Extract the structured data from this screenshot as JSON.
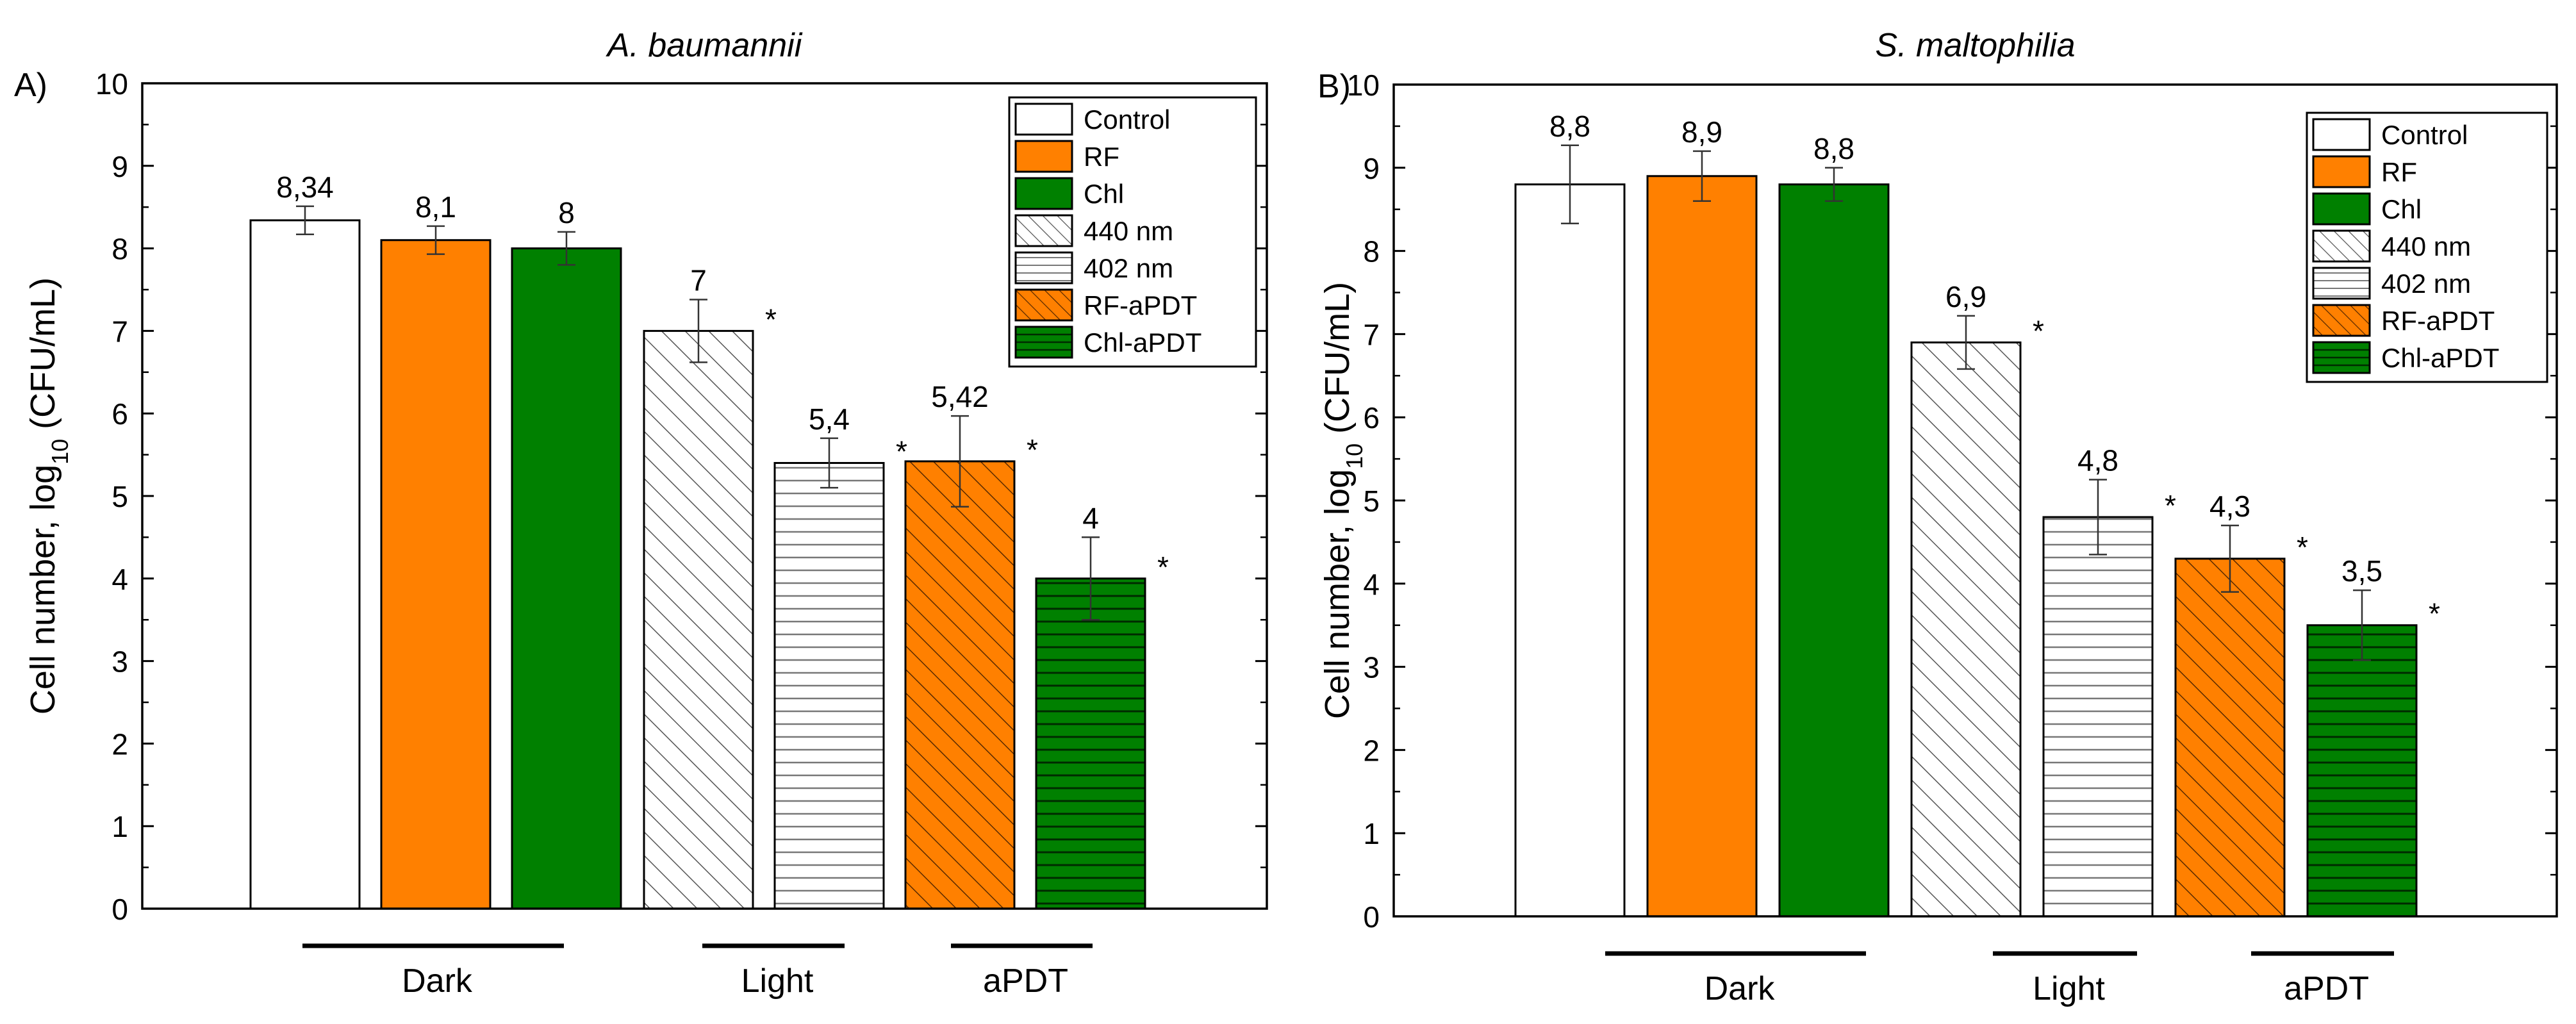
{
  "colors": {
    "control": "#ffffff",
    "rf": "#ff8000",
    "chl": "#008000",
    "axis": "#000000",
    "hatch": "#555555"
  },
  "legend_entries": [
    {
      "label": "Control",
      "pattern": "control"
    },
    {
      "label": "RF",
      "pattern": "rf"
    },
    {
      "label": "Chl",
      "pattern": "chl"
    },
    {
      "label": "440 nm",
      "pattern": "diag-white"
    },
    {
      "label": "402 nm",
      "pattern": "horiz-white"
    },
    {
      "label": "RF-aPDT",
      "pattern": "diag-orange"
    },
    {
      "label": "Chl-aPDT",
      "pattern": "horiz-green"
    }
  ],
  "chart_data": [
    {
      "type": "bar",
      "panel_label": "A)",
      "title": "A. baumannii",
      "ylabel_prefix": "Cell number, log",
      "ylabel_sub": "10",
      "ylabel_suffix": " (CFU/mL)",
      "ylim": [
        0,
        10
      ],
      "yticks": [
        "0",
        "1",
        "2",
        "3",
        "4",
        "5",
        "6",
        "7",
        "8",
        "9",
        "10"
      ],
      "legend": "top-right",
      "categories": [
        "Control",
        "RF",
        "Chl",
        "440 nm",
        "402 nm",
        "RF-aPDT",
        "Chl-aPDT"
      ],
      "values": [
        8.34,
        8.1,
        8.0,
        7.0,
        5.4,
        5.42,
        4.0
      ],
      "errors": [
        0.17,
        0.17,
        0.2,
        0.38,
        0.3,
        0.55,
        0.5
      ],
      "data_labels": [
        "8,34",
        "8,1",
        "8",
        "7",
        "5,4",
        "5,42",
        "4"
      ],
      "significant": [
        false,
        false,
        false,
        true,
        true,
        true,
        true
      ],
      "significance_marker": "*",
      "groups": [
        {
          "label": "Dark",
          "from": 0,
          "to": 2
        },
        {
          "label": "Light",
          "from": 3,
          "to": 4
        },
        {
          "label": "aPDT",
          "from": 5,
          "to": 6
        }
      ]
    },
    {
      "type": "bar",
      "panel_label": "B)",
      "title": "S. maltophilia",
      "ylabel_prefix": "Cell number, log",
      "ylabel_sub": "10",
      "ylabel_suffix": " (CFU/mL)",
      "ylim": [
        0,
        10
      ],
      "yticks": [
        "0",
        "1",
        "2",
        "3",
        "4",
        "5",
        "6",
        "7",
        "8",
        "9",
        "10"
      ],
      "legend": "top-right",
      "categories": [
        "Control",
        "RF",
        "Chl",
        "440 nm",
        "402 nm",
        "RF-aPDT",
        "Chl-aPDT"
      ],
      "values": [
        8.8,
        8.9,
        8.8,
        6.9,
        4.8,
        4.3,
        3.5
      ],
      "errors": [
        0.47,
        0.3,
        0.2,
        0.32,
        0.45,
        0.4,
        0.42
      ],
      "data_labels": [
        "8,8",
        "8,9",
        "8,8",
        "6,9",
        "4,8",
        "4,3",
        "3,5"
      ],
      "significant": [
        false,
        false,
        false,
        true,
        true,
        true,
        true
      ],
      "significance_marker": "*",
      "groups": [
        {
          "label": "Dark",
          "from": 0,
          "to": 2
        },
        {
          "label": "Light",
          "from": 3,
          "to": 4
        },
        {
          "label": "aPDT",
          "from": 5,
          "to": 6
        }
      ]
    }
  ]
}
